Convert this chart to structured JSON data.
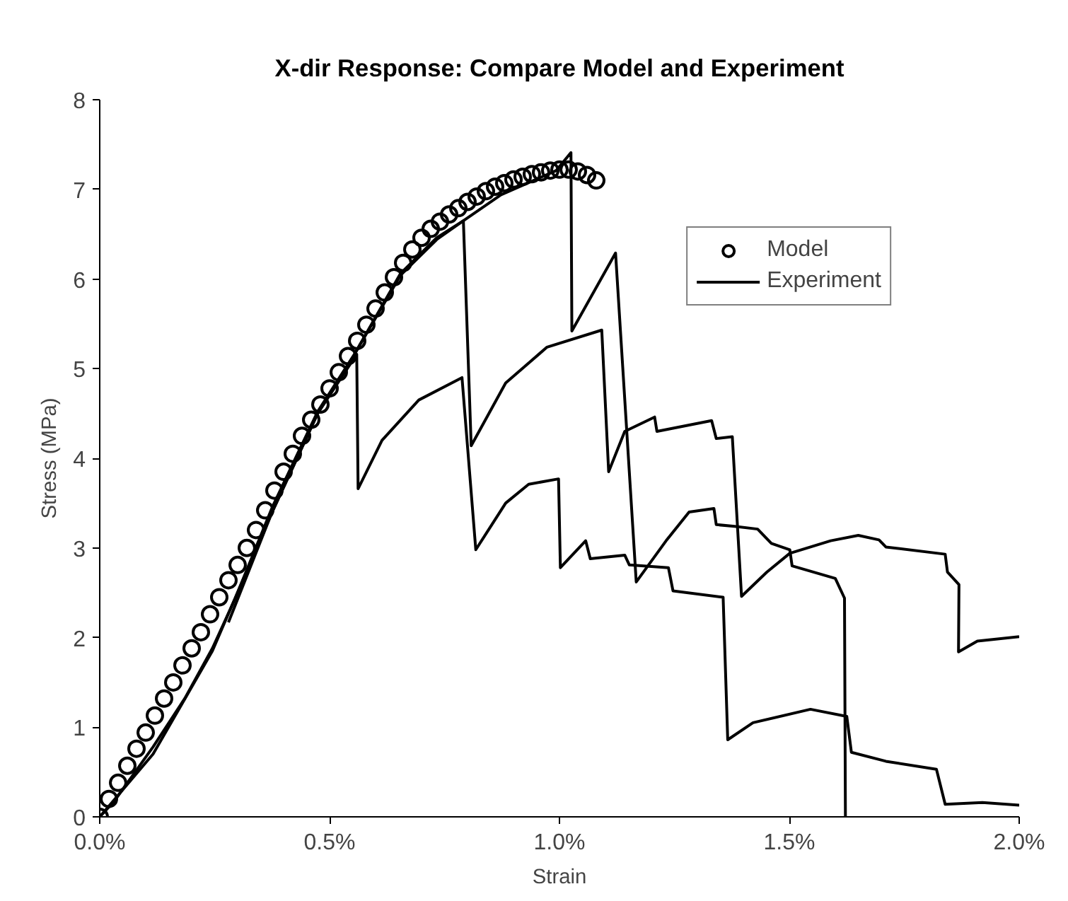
{
  "chart_data": {
    "type": "line",
    "title": "X-dir Response: Compare Model and Experiment",
    "xlabel": "Strain",
    "ylabel": "Stress (MPa)",
    "xlim": [
      0,
      2.0
    ],
    "ylim": [
      0,
      8
    ],
    "xticks": [
      {
        "value": 0,
        "label": "0.0%"
      },
      {
        "value": 0.5,
        "label": "0.5%"
      },
      {
        "value": 1.0,
        "label": "1.0%"
      },
      {
        "value": 1.5,
        "label": "1.5%"
      },
      {
        "value": 2.0,
        "label": "2.0%"
      }
    ],
    "yticks": [
      0,
      1,
      2,
      3,
      4,
      5,
      6,
      7,
      8
    ],
    "grid": false,
    "legend": "top right",
    "series": [
      {
        "name": "Model",
        "type": "scatter",
        "marker": "circle",
        "color": "#000000",
        "x": [
          0,
          0.02,
          0.04,
          0.06,
          0.08,
          0.1,
          0.12,
          0.14,
          0.16,
          0.18,
          0.2,
          0.22,
          0.24,
          0.26,
          0.28,
          0.3,
          0.32,
          0.34,
          0.36,
          0.38,
          0.4,
          0.42,
          0.44,
          0.46,
          0.48,
          0.5,
          0.52,
          0.54,
          0.56,
          0.58,
          0.6,
          0.62,
          0.64,
          0.66,
          0.68,
          0.7,
          0.72,
          0.74,
          0.76,
          0.78,
          0.8,
          0.82,
          0.84,
          0.86,
          0.88,
          0.9,
          0.92,
          0.94,
          0.96,
          0.98,
          1.0,
          1.02,
          1.04,
          1.06,
          1.08
        ],
        "values": [
          0,
          0.2,
          0.38,
          0.57,
          0.76,
          0.94,
          1.13,
          1.32,
          1.5,
          1.69,
          1.88,
          2.06,
          2.26,
          2.45,
          2.64,
          2.81,
          3.0,
          3.2,
          3.42,
          3.64,
          3.85,
          4.05,
          4.25,
          4.43,
          4.6,
          4.78,
          4.96,
          5.14,
          5.31,
          5.49,
          5.67,
          5.85,
          6.02,
          6.18,
          6.33,
          6.46,
          6.56,
          6.64,
          6.72,
          6.79,
          6.86,
          6.92,
          6.98,
          7.03,
          7.07,
          7.11,
          7.14,
          7.17,
          7.19,
          7.21,
          7.22,
          7.22,
          7.2,
          7.16,
          7.1
        ]
      },
      {
        "name": "Experiment",
        "line_style": "solid",
        "color": "#000000",
        "x": [
          0,
          0.031,
          0.116,
          0.185,
          0.245,
          0.295,
          0.375,
          0.434,
          0.474,
          0.554,
          0.654,
          0.733,
          0.791,
          0.873,
          0.993,
          1.025,
          1.027,
          1.122,
          1.167,
          1.232,
          1.282,
          1.336,
          1.341,
          1.381,
          1.431,
          1.461,
          1.501,
          1.506,
          1.6,
          1.62,
          1.622
        ],
        "values": [
          0,
          0.17,
          0.78,
          1.32,
          1.88,
          2.44,
          3.45,
          4.09,
          4.52,
          5.16,
          6.06,
          6.46,
          6.65,
          6.94,
          7.21,
          7.41,
          5.42,
          6.29,
          2.62,
          3.08,
          3.4,
          3.44,
          3.26,
          3.24,
          3.21,
          3.05,
          2.98,
          2.8,
          2.66,
          2.44,
          0
        ]
      },
      {
        "line_style": "solid",
        "color": "#000000",
        "x": [
          0.28,
          0.375,
          0.474,
          0.559,
          0.562,
          0.614,
          0.694,
          0.788,
          0.818,
          0.883,
          0.933,
          0.998,
          1.002,
          1.057,
          1.067,
          1.142,
          1.152,
          1.237,
          1.247,
          1.356,
          1.366,
          1.421,
          1.546,
          1.625,
          1.635,
          1.71,
          1.82,
          1.839,
          1.92,
          2.0
        ],
        "values": [
          2.17,
          3.4,
          4.5,
          5.16,
          3.66,
          4.2,
          4.65,
          4.9,
          2.98,
          3.5,
          3.71,
          3.77,
          2.78,
          3.08,
          2.88,
          2.92,
          2.81,
          2.78,
          2.52,
          2.45,
          0.86,
          1.05,
          1.2,
          1.12,
          0.72,
          0.62,
          0.53,
          0.14,
          0.16,
          0.13
        ]
      },
      {
        "line_style": "solid",
        "color": "#000000",
        "x": [
          0,
          0.116,
          0.245,
          0.375,
          0.474,
          0.554,
          0.654,
          0.733,
          0.791,
          0.808,
          0.883,
          0.973,
          1.092,
          1.107,
          1.142,
          1.207,
          1.212,
          1.331,
          1.341,
          1.376,
          1.396,
          1.451,
          1.501,
          1.59,
          1.65,
          1.695,
          1.71,
          1.839,
          1.844,
          1.869,
          1.868,
          1.909,
          2.0
        ],
        "values": [
          0,
          0.7,
          1.85,
          3.4,
          4.5,
          5.16,
          6.04,
          6.44,
          6.65,
          4.14,
          4.84,
          5.24,
          5.43,
          3.85,
          4.3,
          4.46,
          4.3,
          4.42,
          4.22,
          4.24,
          2.46,
          2.73,
          2.94,
          3.08,
          3.14,
          3.09,
          3.01,
          2.93,
          2.73,
          2.59,
          1.84,
          1.96,
          2.01
        ]
      }
    ]
  }
}
